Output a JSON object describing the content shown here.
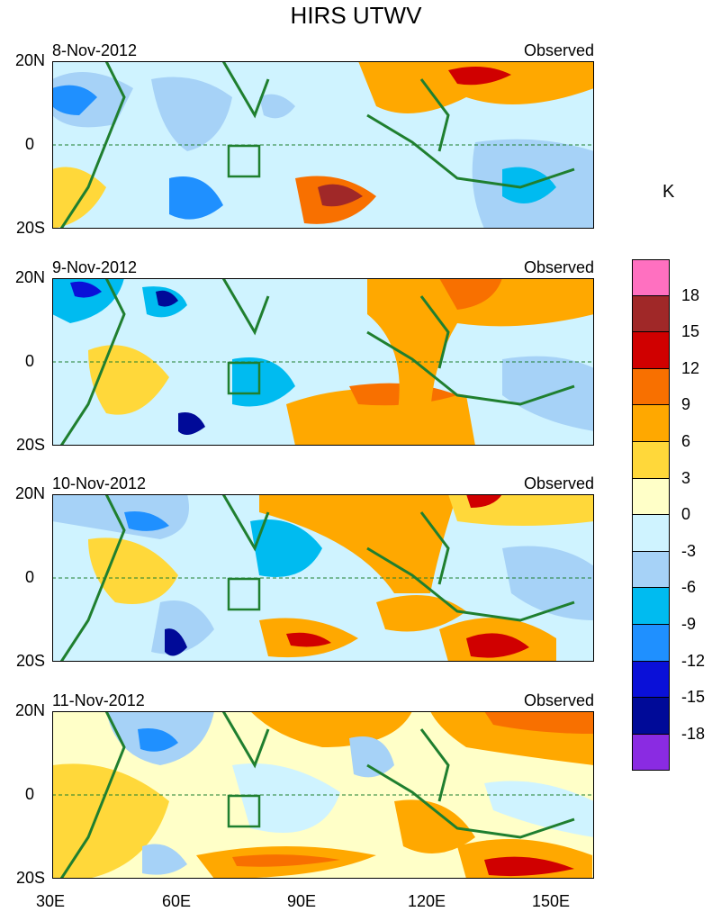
{
  "title": "HIRS UTWV",
  "panel_label_right": "Observed",
  "panels": [
    {
      "date": "8-Nov-2012"
    },
    {
      "date": "9-Nov-2012"
    },
    {
      "date": "10-Nov-2012"
    },
    {
      "date": "11-Nov-2012"
    }
  ],
  "axes": {
    "lat_labels": [
      "20N",
      "0",
      "20S"
    ],
    "lon_labels": [
      "30E",
      "60E",
      "90E",
      "120E",
      "150E"
    ]
  },
  "colorbar": {
    "unit": "K",
    "labels": [
      "18",
      "15",
      "12",
      "9",
      "6",
      "3",
      "0",
      "-3",
      "-6",
      "-9",
      "-12",
      "-15",
      "-18"
    ],
    "colors": [
      "#ff70c0",
      "#a02828",
      "#d00000",
      "#f87000",
      "#ffa800",
      "#ffd83a",
      "#ffffc8",
      "#cff3ff",
      "#a6d2f7",
      "#00bbf0",
      "#1f90ff",
      "#0a10d8",
      "#000a98",
      "#8a2be2"
    ]
  }
}
